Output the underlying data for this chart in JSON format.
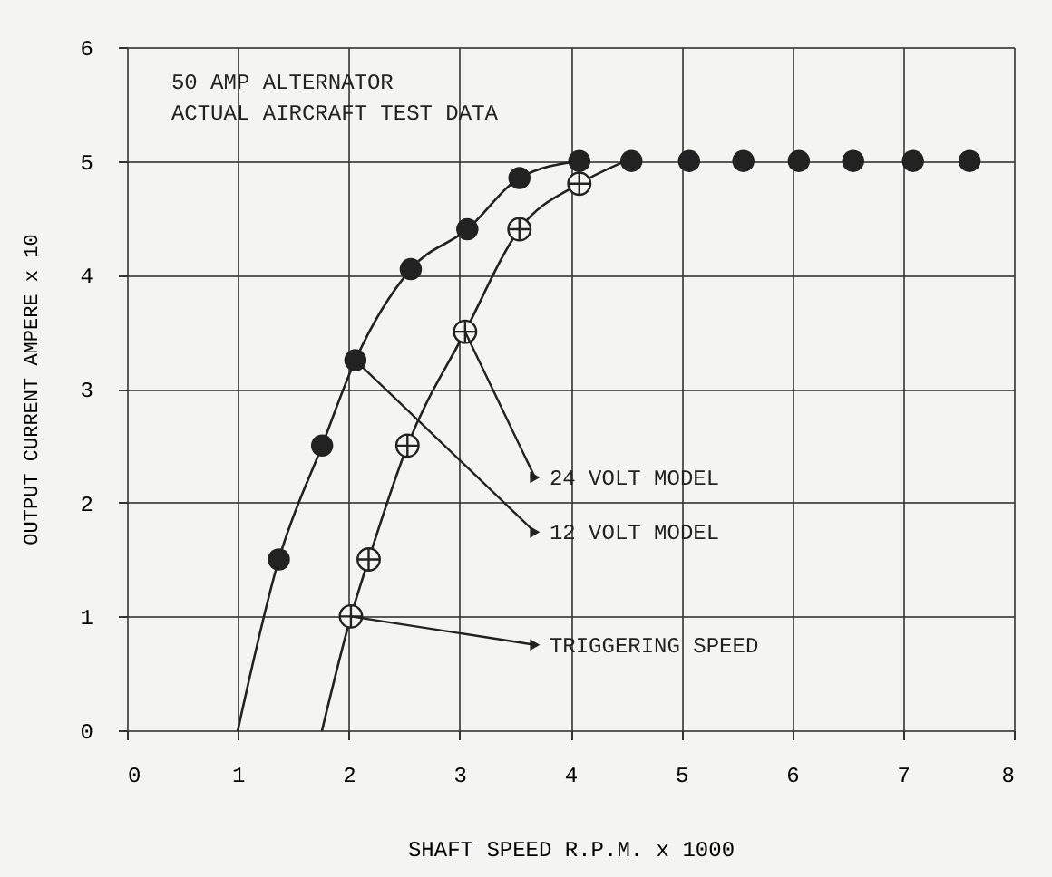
{
  "chart_data": {
    "type": "line",
    "xlabel": "SHAFT SPEED  R.P.M. x 1000",
    "ylabel": "OUTPUT CURRENT AMPERE x 10",
    "annotations": [
      "50 AMP ALTERNATOR",
      "ACTUAL AIRCRAFT TEST DATA",
      {
        "text": "24 VOLT MODEL",
        "x": 3.05,
        "y": 3.5
      },
      {
        "text": "12 VOLT MODEL",
        "x": 2.06,
        "y": 3.25
      },
      {
        "text": "TRIGGERING SPEED",
        "x": 2.02,
        "y": 1.0
      }
    ],
    "series": [
      {
        "color": "#222222",
        "marker": "none",
        "line_style": "solid",
        "x": [
          1.0,
          1.37,
          1.76,
          2.06,
          2.56,
          3.07,
          3.54,
          4.08
        ],
        "values": [
          0,
          1.5,
          2.5,
          3.25,
          4.05,
          4.4,
          4.85,
          5.0
        ]
      },
      {
        "color": "#222222",
        "marker": "none",
        "line_style": "solid",
        "x": [
          1.76,
          2.02,
          2.18,
          2.53,
          3.05,
          3.54,
          4.08,
          4.5
        ],
        "values": [
          0,
          1.0,
          1.5,
          2.5,
          3.5,
          4.4,
          4.8,
          5.0
        ]
      },
      {
        "type": "scatter",
        "color": "#222222",
        "marker": "circle",
        "x": [
          1.37,
          1.76,
          2.06,
          2.56,
          3.07,
          3.54,
          4.08,
          4.55,
          5.07,
          5.56,
          6.06,
          6.55,
          7.09,
          7.6
        ],
        "values": [
          1.5,
          2.5,
          3.25,
          4.05,
          4.4,
          4.85,
          5.0,
          5.0,
          5.0,
          5.0,
          5.0,
          5.0,
          5.0,
          5.0
        ]
      },
      {
        "type": "scatter",
        "color": "#222222",
        "marker": "cross",
        "x": [
          2.02,
          2.18,
          2.53,
          3.05,
          3.54,
          4.08
        ],
        "values": [
          1.0,
          1.5,
          2.5,
          3.5,
          4.4,
          4.8
        ]
      }
    ],
    "xlim": [
      0,
      8
    ],
    "xticks": [
      0,
      1,
      2,
      3,
      4,
      5,
      6,
      7,
      8
    ],
    "ylim": [
      0,
      6
    ],
    "yticks": [
      0,
      1,
      2,
      3,
      4,
      5,
      6
    ],
    "grid": true
  }
}
